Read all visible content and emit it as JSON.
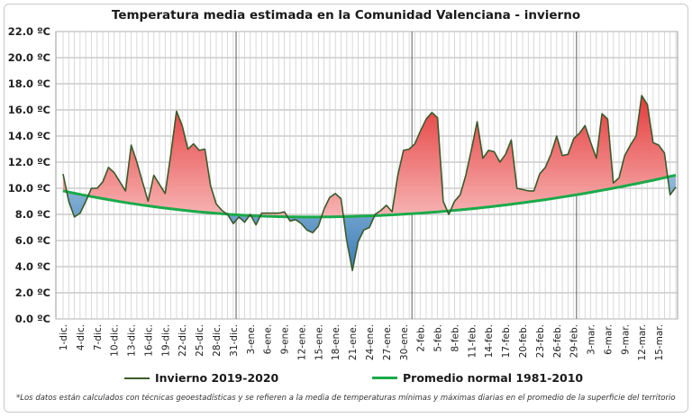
{
  "chart_data": {
    "type": "line",
    "title": "Temperatura media estimada en la Comunidad Valenciana - invierno",
    "ylim": [
      0,
      22
    ],
    "yticks": [
      "22.0 ºC",
      "20.0 ºC",
      "18.0 ºC",
      "16.0 ºC",
      "14.0 ºC",
      "12.0 ºC",
      "10.0 ºC",
      "8.0 ºC",
      "6.0 ºC",
      "4.0 ºC",
      "2.0 ºC",
      "0.0 ºC"
    ],
    "x_tick_labels": [
      "1-dic.",
      "4-dic.",
      "7-dic.",
      "10-dic.",
      "13-dic.",
      "16-dic.",
      "19-dic.",
      "22-dic.",
      "25-dic.",
      "28-dic.",
      "31-dic.",
      "3-ene.",
      "6-ene.",
      "9-ene.",
      "12-ene.",
      "15-ene.",
      "18-ene.",
      "21-ene.",
      "24-ene.",
      "27-ene.",
      "30-ene.",
      "2-feb.",
      "5-feb.",
      "8-feb.",
      "11-feb.",
      "14-feb.",
      "17-feb.",
      "20-feb.",
      "23-feb.",
      "26-feb.",
      "29-feb.",
      "3-mar.",
      "6-mar.",
      "9-mar.",
      "12-mar.",
      "15-mar."
    ],
    "grid": true,
    "series": [
      {
        "name": "Invierno 2019-2020",
        "color": "#3a5a2a",
        "values": [
          11.1,
          9.0,
          7.8,
          8.1,
          9.0,
          10.0,
          10.0,
          10.5,
          11.6,
          11.2,
          10.5,
          9.8,
          13.3,
          12.0,
          10.5,
          9.0,
          11.0,
          10.3,
          9.6,
          12.6,
          15.9,
          14.8,
          13.0,
          13.4,
          12.9,
          13.0,
          10.2,
          8.8,
          8.3,
          8.0,
          7.3,
          7.8,
          7.4,
          8.0,
          7.2,
          8.1,
          8.1,
          8.1,
          8.1,
          8.2,
          7.5,
          7.6,
          7.3,
          6.8,
          6.6,
          7.1,
          8.4,
          9.3,
          9.6,
          9.2,
          6.0,
          3.7,
          5.9,
          6.8,
          7.0,
          8.0,
          8.3,
          8.7,
          8.2,
          11.0,
          12.9,
          13.0,
          13.4,
          14.4,
          15.3,
          15.8,
          15.4,
          9.0,
          8.0,
          9.0,
          9.5,
          11.0,
          13.0,
          15.1,
          12.3,
          12.9,
          12.8,
          12.0,
          12.6,
          13.7,
          10.0,
          9.9,
          9.8,
          9.8,
          11.1,
          11.6,
          12.6,
          14.0,
          12.5,
          12.6,
          13.8,
          14.2,
          14.8,
          13.5,
          12.3,
          15.7,
          15.3,
          10.4,
          10.8,
          12.5,
          13.3,
          14.0,
          17.1,
          16.4,
          13.5,
          13.3,
          12.7,
          9.5,
          10.1
        ]
      },
      {
        "name": "Promedio normal 1981-2010",
        "color": "#1aaa4a",
        "min": 7.8,
        "start": 9.8,
        "end": 11.0
      }
    ]
  },
  "legend": {
    "series1": "Invierno 2019-2020",
    "series2": "Promedio normal 1981-2010"
  },
  "footnote": "*Los datos están calculados con técnicas geoestadísticas y se refieren a la media de temperaturas mínimas y máximas diarias en el promedio de la superficie del territorio"
}
